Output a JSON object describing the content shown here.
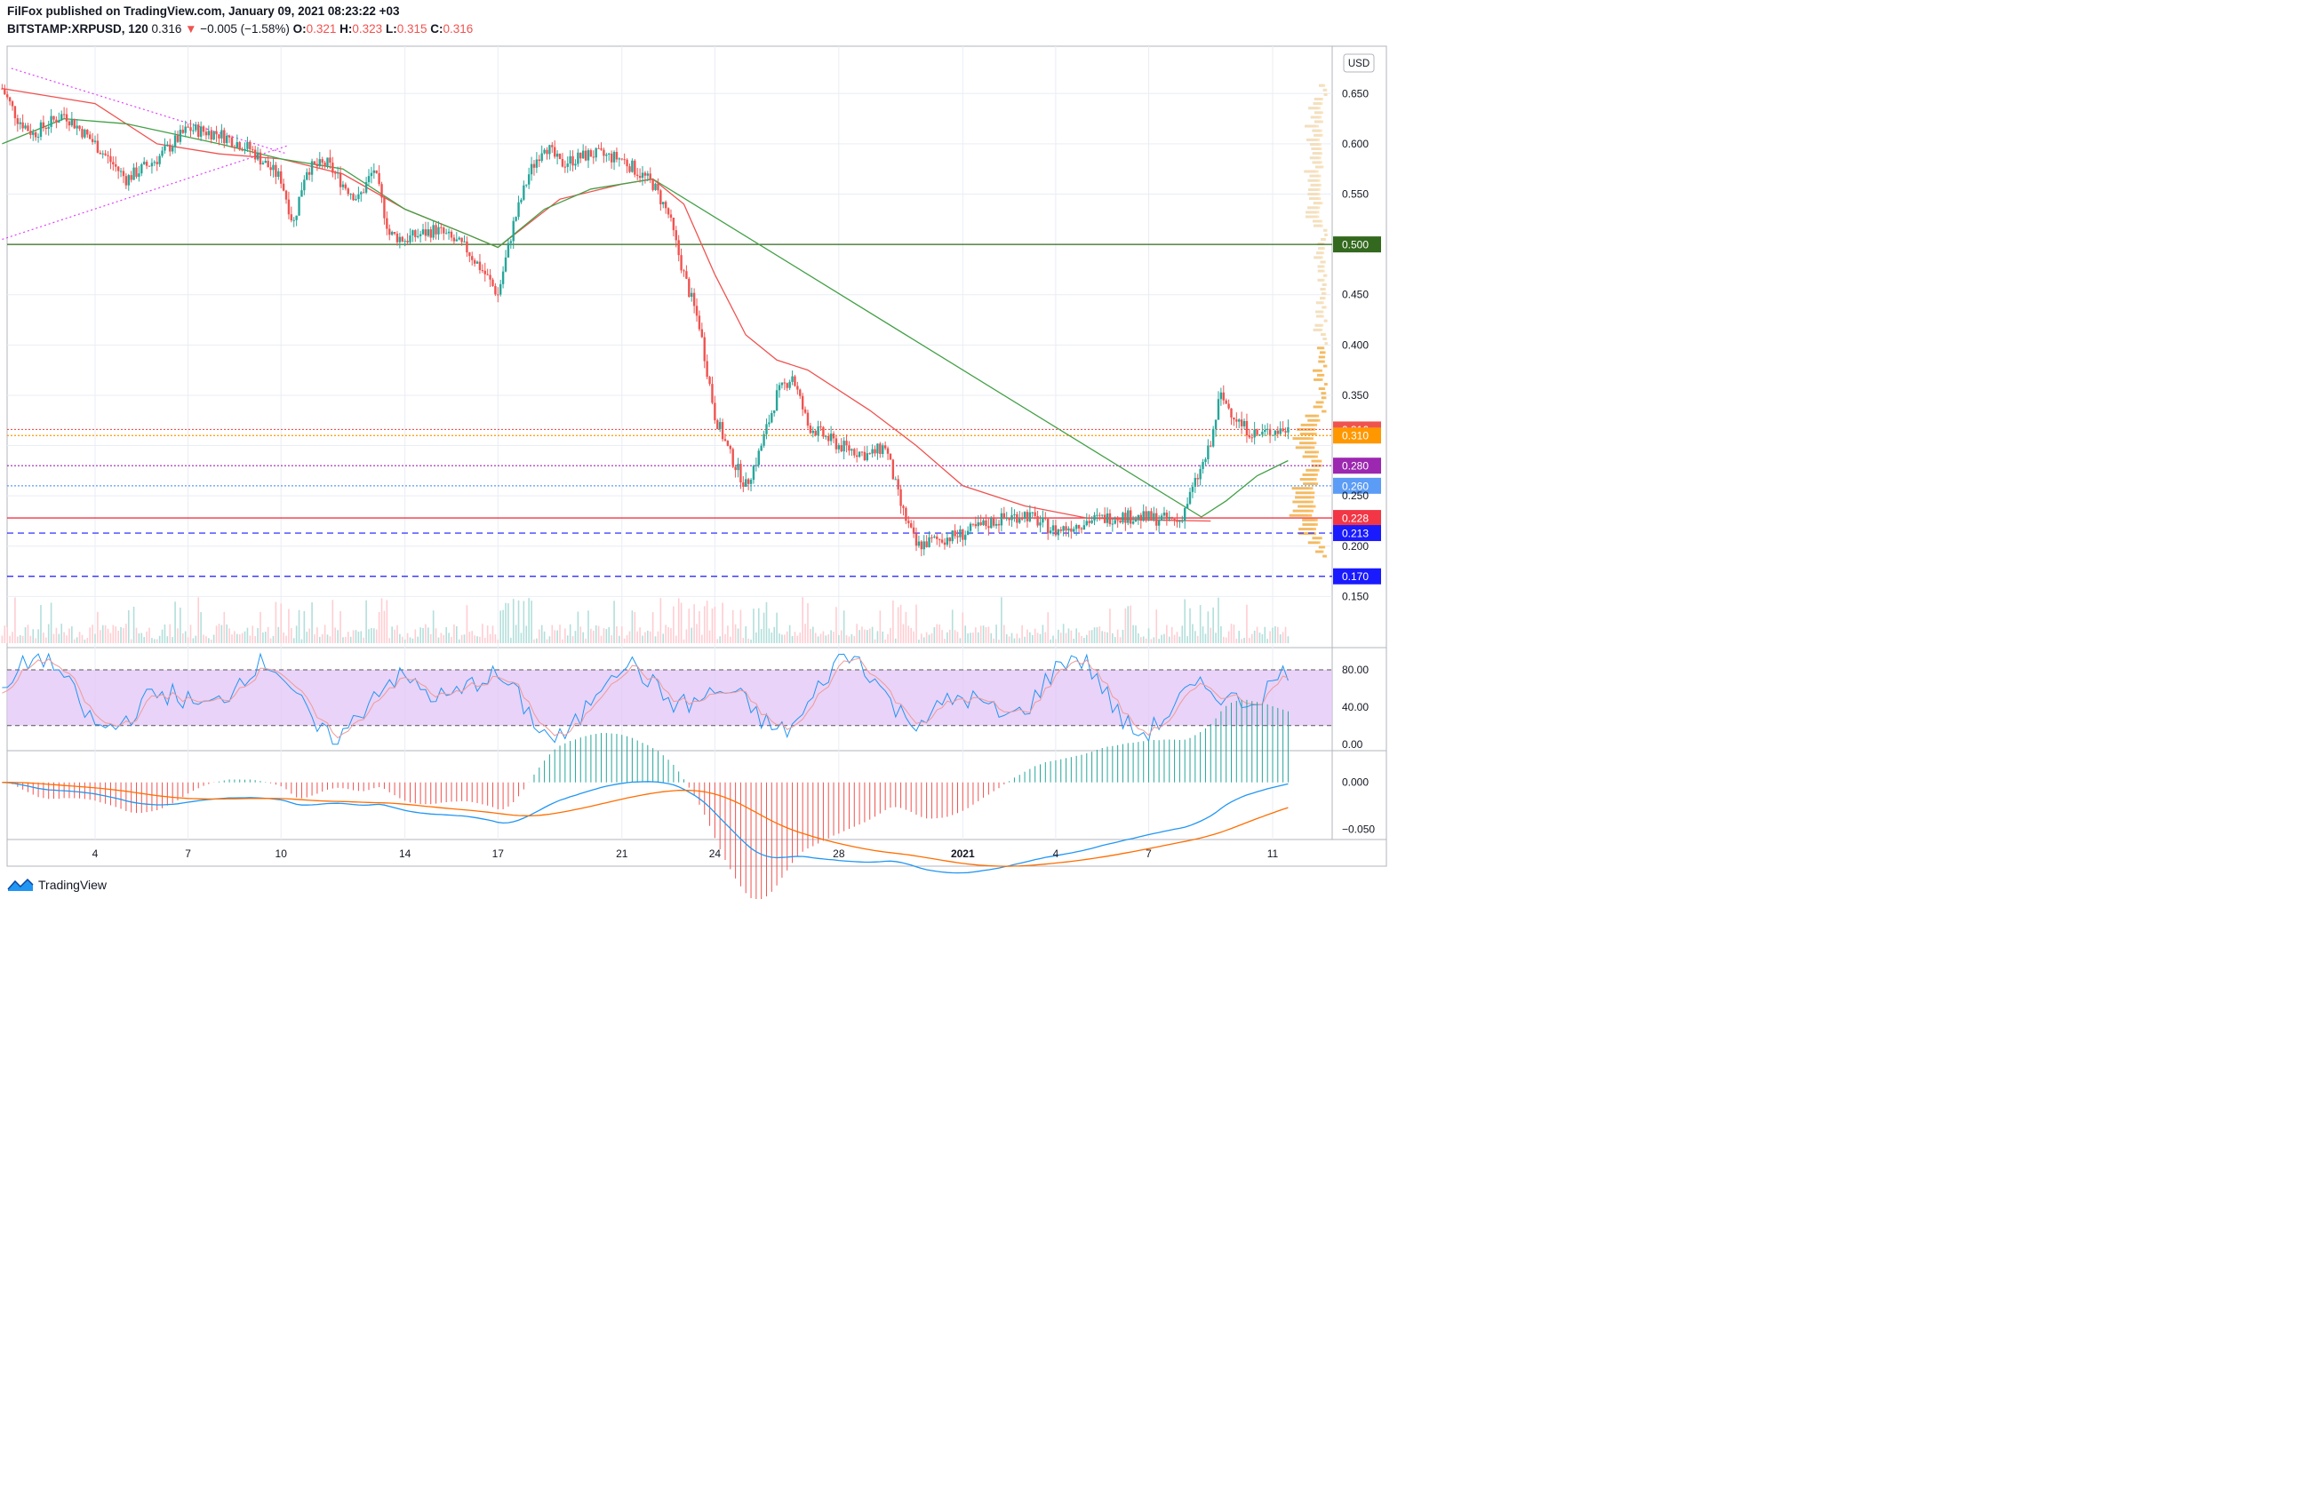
{
  "header": {
    "publisher_line": "FilFox published on TradingView.com, January 09, 2021 08:23:22 +03",
    "symbol": "BITSTAMP:XRPUSD, 120",
    "last": "0.316",
    "change": "−0.005 (−1.58%)",
    "o_label": "O:",
    "o": "0.321",
    "h_label": "H:",
    "h": "0.323",
    "l_label": "L:",
    "l": "0.315",
    "c_label": "C:",
    "c": "0.316"
  },
  "brand": {
    "name": "TradingView",
    "icon": "tradingview-logo-icon"
  },
  "colors": {
    "up": "#26a69a",
    "down": "#ef5350",
    "ma_red": "#ef5350",
    "ma_green": "#43a047",
    "stoch_band": "#e1c4f5",
    "macd_blue": "#2196f3",
    "macd_orange": "#ff6d00",
    "level_0500": "#33691e",
    "level_0316": "#ef5350",
    "level_0310": "#ff9800",
    "level_0280": "#9c27b0",
    "level_0260": "#5b9cf6",
    "level_0228": "#f23645",
    "level_0213": "#1a1aff",
    "level_0170": "#1a1aff"
  },
  "chart_data": [
    {
      "type": "candlestick",
      "symbol": "BITSTAMP:XRPUSD",
      "timeframe": "120",
      "currency": "USD",
      "ylim": [
        0.1,
        0.69
      ],
      "y_ticks": [
        "0.650",
        "0.600",
        "0.550",
        "0.450",
        "0.400",
        "0.350",
        "0.250",
        "0.200",
        "0.150"
      ],
      "x_ticks": [
        "4",
        "7",
        "10",
        "14",
        "17",
        "21",
        "24",
        "28",
        "2021",
        "4",
        "7",
        "11"
      ],
      "price_path": [
        [
          0,
          0.655
        ],
        [
          0.5,
          0.625
        ],
        [
          1,
          0.61
        ],
        [
          2,
          0.63
        ],
        [
          3,
          0.6
        ],
        [
          4,
          0.565
        ],
        [
          5,
          0.585
        ],
        [
          6,
          0.615
        ],
        [
          7,
          0.61
        ],
        [
          8,
          0.595
        ],
        [
          9,
          0.565
        ],
        [
          9.4,
          0.52
        ],
        [
          9.8,
          0.575
        ],
        [
          10.5,
          0.58
        ],
        [
          11,
          0.56
        ],
        [
          11.5,
          0.545
        ],
        [
          12,
          0.575
        ],
        [
          12.5,
          0.51
        ],
        [
          13,
          0.505
        ],
        [
          14,
          0.515
        ],
        [
          15,
          0.495
        ],
        [
          15.6,
          0.47
        ],
        [
          16,
          0.45
        ],
        [
          16.5,
          0.52
        ],
        [
          17,
          0.57
        ],
        [
          17.5,
          0.6
        ],
        [
          18,
          0.58
        ],
        [
          19,
          0.59
        ],
        [
          20,
          0.585
        ],
        [
          21,
          0.56
        ],
        [
          21.5,
          0.53
        ],
        [
          22,
          0.47
        ],
        [
          22.5,
          0.42
        ],
        [
          23,
          0.33
        ],
        [
          23.5,
          0.29
        ],
        [
          24,
          0.26
        ],
        [
          24.4,
          0.29
        ],
        [
          25,
          0.35
        ],
        [
          25.5,
          0.37
        ],
        [
          26,
          0.32
        ],
        [
          27,
          0.3
        ],
        [
          28,
          0.29
        ],
        [
          28.5,
          0.3
        ],
        [
          29,
          0.24
        ],
        [
          29.5,
          0.2
        ],
        [
          30,
          0.205
        ],
        [
          31,
          0.212
        ],
        [
          32,
          0.225
        ],
        [
          33,
          0.232
        ],
        [
          34,
          0.215
        ],
        [
          35,
          0.225
        ],
        [
          36,
          0.23
        ],
        [
          37,
          0.228
        ],
        [
          38,
          0.225
        ],
        [
          39,
          0.3
        ],
        [
          39.3,
          0.35
        ],
        [
          40,
          0.32
        ],
        [
          40.5,
          0.31
        ],
        [
          41,
          0.315
        ],
        [
          41.5,
          0.316
        ]
      ],
      "ma_red": [
        [
          0,
          0.655
        ],
        [
          3,
          0.64
        ],
        [
          5,
          0.6
        ],
        [
          7,
          0.59
        ],
        [
          9,
          0.585
        ],
        [
          11,
          0.57
        ],
        [
          13,
          0.535
        ],
        [
          15,
          0.51
        ],
        [
          16,
          0.497
        ],
        [
          18,
          0.545
        ],
        [
          20,
          0.56
        ],
        [
          21,
          0.565
        ],
        [
          22,
          0.54
        ],
        [
          23,
          0.47
        ],
        [
          24,
          0.41
        ],
        [
          25,
          0.385
        ],
        [
          26,
          0.375
        ],
        [
          28,
          0.335
        ],
        [
          29.5,
          0.3
        ],
        [
          31,
          0.26
        ],
        [
          33,
          0.24
        ],
        [
          35,
          0.228
        ],
        [
          37,
          0.226
        ],
        [
          39,
          0.225
        ]
      ],
      "ma_green": [
        [
          0,
          0.6
        ],
        [
          2,
          0.625
        ],
        [
          4,
          0.62
        ],
        [
          7,
          0.6
        ],
        [
          9,
          0.585
        ],
        [
          11,
          0.575
        ],
        [
          13,
          0.535
        ],
        [
          15,
          0.51
        ],
        [
          16,
          0.497
        ],
        [
          17.5,
          0.535
        ],
        [
          19,
          0.555
        ],
        [
          21,
          0.565
        ],
        [
          38.7,
          0.229
        ],
        [
          39.5,
          0.245
        ],
        [
          40.5,
          0.27
        ],
        [
          41.5,
          0.285
        ]
      ],
      "levels": [
        {
          "value": 0.5,
          "label": "0.500",
          "style": "solid"
        },
        {
          "value": 0.316,
          "label": "0.316",
          "style": "dotted"
        },
        {
          "value": 0.31,
          "label": "0.310",
          "style": "dotted"
        },
        {
          "value": 0.28,
          "label": "0.280",
          "style": "dotted"
        },
        {
          "value": 0.26,
          "label": "0.260",
          "style": "dotted"
        },
        {
          "value": 0.228,
          "label": "0.228",
          "style": "solid"
        },
        {
          "value": 0.213,
          "label": "0.213",
          "style": "dashed"
        },
        {
          "value": 0.17,
          "label": "0.170",
          "style": "dashed"
        }
      ],
      "triangle_upper": [
        [
          0.3,
          0.675
        ],
        [
          9.2,
          0.59
        ]
      ],
      "triangle_lower": [
        [
          0,
          0.505
        ],
        [
          9.2,
          0.598
        ]
      ]
    },
    {
      "type": "line",
      "indicator": "Stochastic",
      "ylim": [
        -5,
        100
      ],
      "y_ticks": [
        "80.00",
        "40.00",
        "0.00"
      ],
      "band": [
        20,
        80
      ]
    },
    {
      "type": "line",
      "indicator": "MACD",
      "ylim": [
        -0.058,
        0.03
      ],
      "y_ticks": [
        "0.000",
        "-0.050"
      ]
    }
  ]
}
